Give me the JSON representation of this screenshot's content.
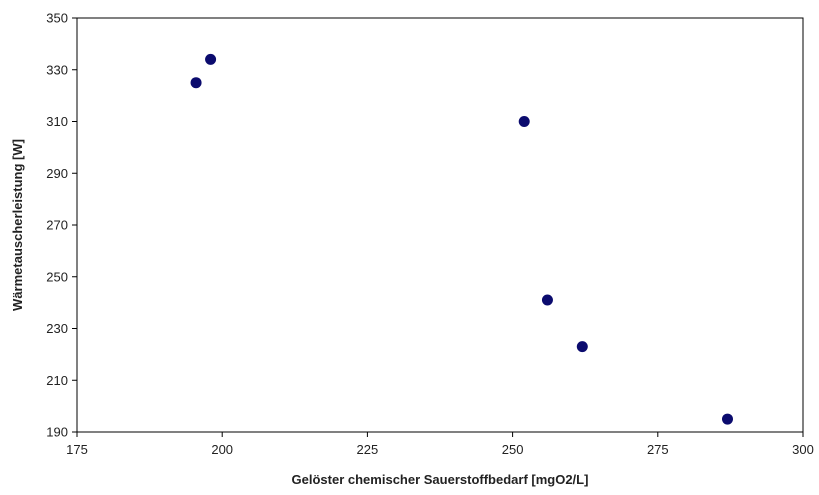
{
  "chart_data": {
    "type": "scatter",
    "title": "",
    "xlabel": "Gelöster chemischer Sauerstoffbedarf [mgO2/L]",
    "ylabel": "Wärmetauscherleistung [W]",
    "xlim": [
      175,
      300
    ],
    "ylim": [
      190,
      350
    ],
    "xticks": [
      "175",
      "200",
      "225",
      "250",
      "275",
      "300"
    ],
    "yticks": [
      "190",
      "210",
      "230",
      "250",
      "270",
      "290",
      "310",
      "330",
      "350"
    ],
    "grid": false,
    "legend": "none",
    "marker_color": "#0b0b6e",
    "points": [
      {
        "x": 195.5,
        "y": 325
      },
      {
        "x": 198,
        "y": 334
      },
      {
        "x": 252,
        "y": 310
      },
      {
        "x": 256,
        "y": 241
      },
      {
        "x": 262,
        "y": 223
      },
      {
        "x": 287,
        "y": 195
      }
    ]
  }
}
